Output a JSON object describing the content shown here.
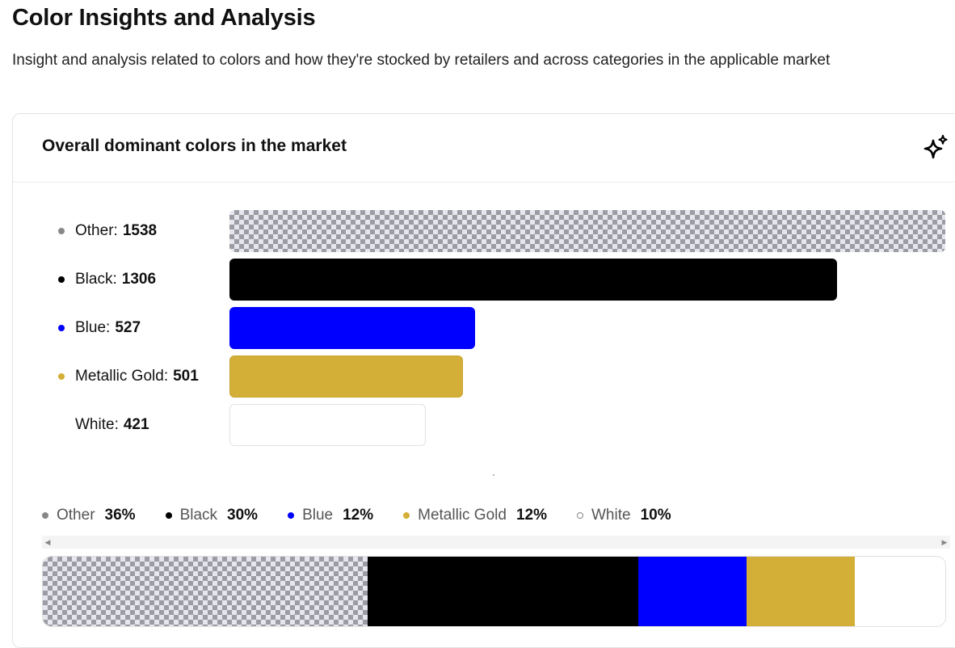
{
  "page": {
    "title": "Color Insights and Analysis",
    "subtitle": "Insight and analysis related to colors and how they're stocked by retailers and across categories in the applicable market"
  },
  "card": {
    "title": "Overall dominant colors in the market",
    "action_icon": "sparkle-icon"
  },
  "chart_data": {
    "type": "bar",
    "orientation": "horizontal",
    "categories": [
      "Other",
      "Black",
      "Blue",
      "Metallic Gold",
      "White"
    ],
    "values": [
      1538,
      1306,
      527,
      501,
      421
    ],
    "colors": [
      "pattern",
      "#000000",
      "#0000ff",
      "#d4af37",
      "#ffffff"
    ],
    "title": "Overall dominant colors in the market",
    "xlim": [
      0,
      1538
    ],
    "grid": false,
    "legend": {
      "position": "bottom",
      "items": [
        {
          "name": "Other",
          "percent": "36%",
          "color": "#888888"
        },
        {
          "name": "Black",
          "percent": "30%",
          "color": "#000000"
        },
        {
          "name": "Blue",
          "percent": "12%",
          "color": "#0000ff"
        },
        {
          "name": "Metallic Gold",
          "percent": "12%",
          "color": "#d4af37"
        },
        {
          "name": "White",
          "percent": "10%",
          "color": "#ffffff"
        }
      ]
    },
    "stacked_bar": {
      "type": "stacked-bar-100",
      "categories": [
        "Other",
        "Black",
        "Blue",
        "Metallic Gold",
        "White"
      ],
      "values": [
        36,
        30,
        12,
        12,
        10
      ]
    }
  },
  "rows": [
    {
      "name": "Other",
      "label": "Other:",
      "value": "1538",
      "dot_color": "#888888"
    },
    {
      "name": "Black",
      "label": "Black:",
      "value": "1306",
      "dot_color": "#000000"
    },
    {
      "name": "Blue",
      "label": "Blue:",
      "value": "527",
      "dot_color": "#0000ff"
    },
    {
      "name": "Metallic Gold",
      "label": "Metallic Gold:",
      "value": "501",
      "dot_color": "#d4af37"
    },
    {
      "name": "White",
      "label": "White:",
      "value": "421",
      "dot_color": "#ffffff"
    }
  ],
  "scrollbar": {
    "left_icon": "scroll-left-arrow-icon",
    "right_icon": "scroll-right-arrow-icon"
  }
}
